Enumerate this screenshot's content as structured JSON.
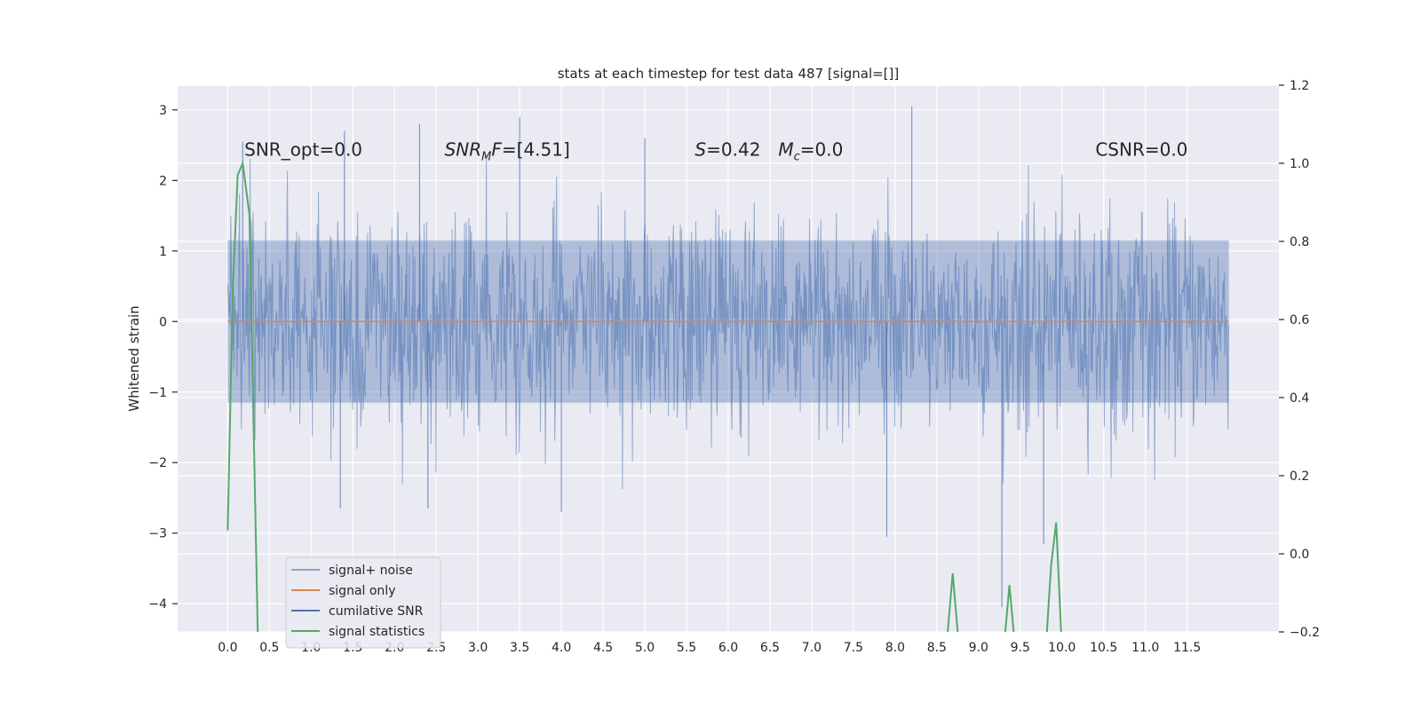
{
  "chart_data": {
    "type": "line",
    "title": "stats at each timestep for test data 487 [signal=[]]",
    "xlabel": "",
    "ylabel": "Whitened strain",
    "y2label": "",
    "xlim": [
      -0.6,
      12.6
    ],
    "ylim": [
      -4.4,
      3.35
    ],
    "y2lim": [
      -0.2,
      1.2
    ],
    "x_ticks": [
      0.0,
      0.5,
      1.0,
      1.5,
      2.0,
      2.5,
      3.0,
      3.5,
      4.0,
      4.5,
      5.0,
      5.5,
      6.0,
      6.5,
      7.0,
      7.5,
      8.0,
      8.5,
      9.0,
      9.5,
      10.0,
      10.5,
      11.0,
      11.5
    ],
    "y_ticks": [
      3,
      2,
      1,
      0,
      -1,
      -2,
      -3,
      -4
    ],
    "y_tick_labels": [
      "3",
      "2",
      "1",
      "0",
      "−1",
      "−2",
      "−3",
      "−4"
    ],
    "y2_ticks": [
      1.2,
      1.0,
      0.8,
      0.6,
      0.4,
      0.2,
      0.0,
      -0.2
    ],
    "y2_tick_labels": [
      "1.2",
      "1.0",
      "0.8",
      "0.6",
      "0.4",
      "0.2",
      "0.0",
      "−0.2"
    ],
    "grid": true,
    "legend_position": "lower-left",
    "annotations": [
      {
        "text_pre": "SNR_opt=0.0",
        "text_sub": "",
        "text_post": "",
        "x": 0.2,
        "y": 2.35
      },
      {
        "text_pre": "SNR",
        "text_sub": "M",
        "text_post": "F=[4.51]",
        "x": 2.6,
        "y": 2.35
      },
      {
        "text_pre": "S",
        "text_sub": "",
        "text_post": "=0.42",
        "x": 5.6,
        "y": 2.35
      },
      {
        "text_pre": "M",
        "text_sub": "c",
        "text_post": "=0.0",
        "x": 6.6,
        "y": 2.35
      },
      {
        "text_pre": "CSNR=0.0",
        "text_sub": "",
        "text_post": "",
        "x": 10.4,
        "y": 2.35
      }
    ],
    "series": [
      {
        "name": "signal+ noise",
        "color": "#4c72b0",
        "axis": "left",
        "style": "dense-noise",
        "x_range": [
          0.0,
          12.0
        ],
        "envelope_typical": [
          -1.8,
          1.8
        ],
        "spikes": [
          {
            "x": 0.18,
            "y": 2.55
          },
          {
            "x": 1.4,
            "y": 2.7
          },
          {
            "x": 2.3,
            "y": 2.8
          },
          {
            "x": 3.5,
            "y": 2.9
          },
          {
            "x": 5.0,
            "y": 2.6
          },
          {
            "x": 8.2,
            "y": 3.05
          },
          {
            "x": 1.35,
            "y": -2.65
          },
          {
            "x": 2.4,
            "y": -2.65
          },
          {
            "x": 4.0,
            "y": -2.7
          },
          {
            "x": 7.9,
            "y": -3.05
          },
          {
            "x": 9.28,
            "y": -4.05
          },
          {
            "x": 9.78,
            "y": -3.15
          }
        ]
      },
      {
        "name": "signal only",
        "color": "#dd8452",
        "axis": "left",
        "x": [
          0.0,
          12.0
        ],
        "y": [
          0.0,
          0.0
        ]
      },
      {
        "name": "cumilative SNR",
        "color": "#4c72b0",
        "axis": "right",
        "x": [],
        "y": []
      },
      {
        "name": "signal statistics",
        "color": "#55a868",
        "axis": "right",
        "segments": [
          {
            "x": [
              0.0,
              0.06,
              0.12,
              0.18,
              0.26,
              0.36
            ],
            "y": [
              0.06,
              0.67,
              0.97,
              1.0,
              0.87,
              -0.2
            ]
          },
          {
            "x": [
              8.63,
              8.69,
              8.75
            ],
            "y": [
              -0.2,
              -0.05,
              -0.2
            ]
          },
          {
            "x": [
              9.32,
              9.37,
              9.42
            ],
            "y": [
              -0.2,
              -0.08,
              -0.2
            ]
          },
          {
            "x": [
              9.82,
              9.87,
              9.93,
              9.99
            ],
            "y": [
              -0.2,
              -0.03,
              0.08,
              -0.2
            ]
          }
        ]
      }
    ]
  }
}
